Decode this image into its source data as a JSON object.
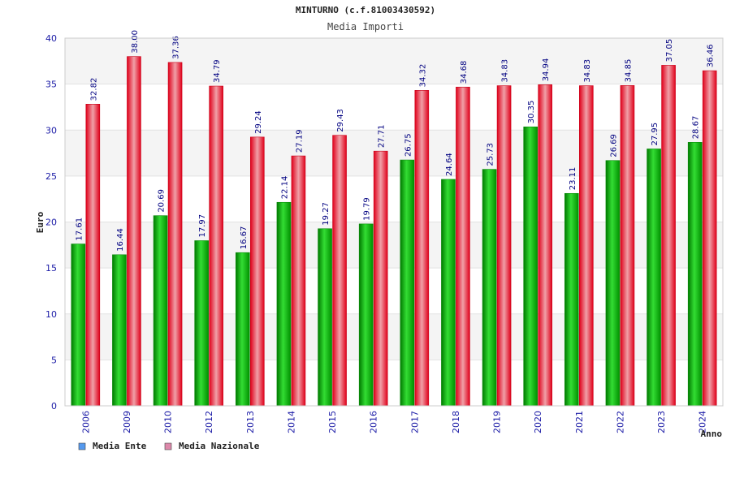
{
  "chart_data": {
    "type": "bar",
    "title": "MINTURNO (c.f.81003430592)",
    "subtitle": "Media Importi",
    "xlabel": "Anno",
    "ylabel": "Euro",
    "ylim": [
      0,
      40
    ],
    "yticks": [
      0,
      5,
      10,
      15,
      20,
      25,
      30,
      35,
      40
    ],
    "grid": true,
    "legend_position": "bottom-left",
    "categories": [
      "2006",
      "2009",
      "2010",
      "2012",
      "2013",
      "2014",
      "2015",
      "2016",
      "2017",
      "2018",
      "2019",
      "2020",
      "2021",
      "2022",
      "2023",
      "2024"
    ],
    "series": [
      {
        "name": "Media Ente",
        "color": "#1fb51f",
        "legend_color": "#5599ee",
        "values": [
          17.61,
          16.44,
          20.69,
          17.97,
          16.67,
          22.14,
          19.27,
          19.79,
          26.75,
          24.64,
          25.73,
          30.35,
          23.11,
          26.69,
          27.95,
          28.67
        ],
        "labels": [
          "17.61",
          "16.44",
          "20.69",
          "17.97",
          "16.67",
          "22.14",
          "19.27",
          "19.79",
          "26.75",
          "24.64",
          "25.73",
          "30.35",
          "23.11",
          "26.69",
          "27.95",
          "28.67"
        ]
      },
      {
        "name": "Media Nazionale",
        "color": "#ee1c2c",
        "legend_color": "#dd88aa",
        "values": [
          32.82,
          38.0,
          37.36,
          34.79,
          29.24,
          27.19,
          29.43,
          27.71,
          34.32,
          34.68,
          34.83,
          34.94,
          34.83,
          34.85,
          37.05,
          36.46
        ],
        "labels": [
          "32.82",
          "38.00",
          "37.36",
          "34.79",
          "29.24",
          "27.19",
          "29.43",
          "27.71",
          "34.32",
          "34.68",
          "34.83",
          "34.94",
          "34.83",
          "34.85",
          "37.05",
          "36.46"
        ]
      }
    ]
  }
}
